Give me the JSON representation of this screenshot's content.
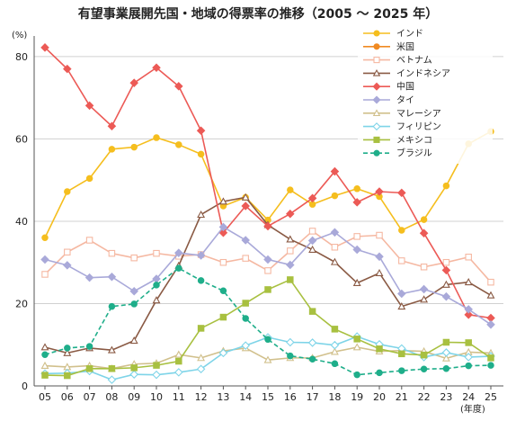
{
  "chart_data": {
    "type": "line",
    "title": "有望事業展開先国・地域の得票率の推移（2005 〜 2025 年）",
    "ylabel": "(%)",
    "xlabel": "(年度)",
    "ylim": [
      0,
      85
    ],
    "yticks": [
      0,
      20,
      40,
      60,
      80
    ],
    "grid": "horizontal",
    "legend_position": "top-right",
    "categories": [
      "05",
      "06",
      "07",
      "08",
      "09",
      "10",
      "11",
      "12",
      "13",
      "14",
      "15",
      "16",
      "17",
      "18",
      "19",
      "20",
      "21",
      "22",
      "23",
      "24",
      "25"
    ],
    "series": [
      {
        "name": "インド",
        "color": "#f5be1e",
        "marker": "circle",
        "filled": true,
        "dashed": false,
        "values": [
          36,
          47.2,
          50.4,
          57.5,
          58,
          60.3,
          58.6,
          56.3,
          43.7,
          45.8,
          40.3,
          47.6,
          44.1,
          46.2,
          47.9,
          46,
          37.8,
          40.4,
          48.6,
          58.8,
          61.8
        ]
      },
      {
        "name": "米国",
        "color": "#f08a22",
        "marker": "circle",
        "filled": true,
        "dashed": false,
        "values": [
          null,
          null,
          null,
          null,
          null,
          null,
          null,
          null,
          null,
          null,
          null,
          null,
          null,
          null,
          null,
          null,
          null,
          null,
          null,
          null,
          null
        ]
      },
      {
        "name": "ベトナム",
        "color": "#f5b8a2",
        "marker": "square",
        "filled": false,
        "dashed": false,
        "values": [
          27.1,
          32.5,
          35.4,
          32.2,
          31.1,
          32.2,
          31.5,
          31.9,
          30,
          31,
          28,
          32.8,
          37.6,
          33.7,
          36.3,
          36.6,
          30.4,
          28.9,
          30,
          31.3,
          25.2
        ]
      },
      {
        "name": "インドネシア",
        "color": "#8a5a44",
        "marker": "triangle",
        "filled": false,
        "dashed": false,
        "values": [
          9.4,
          8,
          9.2,
          8.7,
          11,
          20.8,
          29.2,
          41.6,
          44.8,
          45.8,
          39.1,
          35.6,
          33.1,
          30.1,
          25,
          27.4,
          19.3,
          21,
          24.6,
          25.2,
          22
        ]
      },
      {
        "name": "中国",
        "color": "#ec5a56",
        "marker": "diamond",
        "filled": true,
        "dashed": false,
        "values": [
          82.2,
          77,
          68.1,
          63.1,
          73.6,
          77.3,
          72.8,
          62,
          37.2,
          43.7,
          38.8,
          41.8,
          45.6,
          52.1,
          44.6,
          47.2,
          46.9,
          37.1,
          28.1,
          17.3,
          16.5
        ]
      },
      {
        "name": "タイ",
        "color": "#a9a9d9",
        "marker": "diamond",
        "filled": true,
        "dashed": false,
        "values": [
          30.7,
          29.3,
          26.3,
          26.5,
          23,
          26,
          32.3,
          31.7,
          38.6,
          35.4,
          30.7,
          29.4,
          35.3,
          37.3,
          33.1,
          31.4,
          22.4,
          23.5,
          21.7,
          18.6,
          14.9
        ]
      },
      {
        "name": "マレーシア",
        "color": "#d1c08c",
        "marker": "triangle",
        "filled": false,
        "dashed": false,
        "values": [
          4.9,
          4.6,
          4.9,
          4.2,
          5.3,
          5.5,
          7.6,
          6.8,
          8.5,
          9.2,
          6.3,
          6.8,
          6.8,
          8.3,
          9.4,
          8.4,
          8.6,
          8.4,
          6.7,
          8.2,
          8
        ]
      },
      {
        "name": "フィリピン",
        "color": "#7ed4e8",
        "marker": "diamond",
        "filled": false,
        "dashed": false,
        "values": [
          3,
          3.1,
          3.6,
          1.5,
          2.8,
          2.7,
          3.3,
          4.1,
          8,
          9.8,
          11.8,
          10.6,
          10.5,
          9.9,
          12,
          10.1,
          9.1,
          7,
          8.1,
          7,
          7.2
        ]
      },
      {
        "name": "メキシコ",
        "color": "#a8c040",
        "marker": "square",
        "filled": true,
        "dashed": false,
        "values": [
          2.6,
          2.5,
          4.2,
          4.2,
          4.4,
          5,
          6,
          14,
          16.7,
          20.1,
          23.4,
          25.8,
          18.1,
          13.8,
          11.4,
          9,
          7.8,
          7.5,
          10.6,
          10.5,
          6.8
        ]
      },
      {
        "name": "ブラジル",
        "color": "#1fae8a",
        "marker": "circle",
        "filled": true,
        "dashed": true,
        "values": [
          7.6,
          9.2,
          9.6,
          19.3,
          19.9,
          24.5,
          28.6,
          25.6,
          23.1,
          16.4,
          11.3,
          7.3,
          6.5,
          5.4,
          2.7,
          3.2,
          3.7,
          4.1,
          4.2,
          4.9,
          5
        ]
      }
    ]
  }
}
